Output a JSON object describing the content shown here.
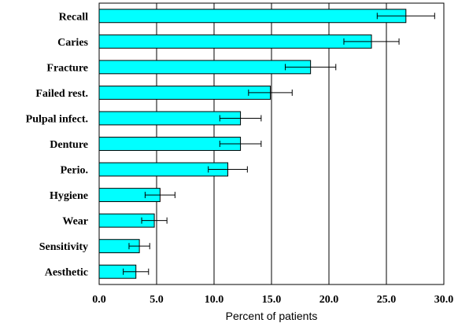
{
  "chart_data": {
    "type": "bar",
    "orientation": "horizontal",
    "categories": [
      "Recall",
      "Caries",
      "Fracture",
      "Failed rest.",
      "Pulpal infect.",
      "Denture",
      "Perio.",
      "Hygiene",
      "Wear",
      "Sensitivity",
      "Aesthetic"
    ],
    "values": [
      26.7,
      23.7,
      18.4,
      14.9,
      12.3,
      12.3,
      11.2,
      5.3,
      4.8,
      3.5,
      3.2
    ],
    "errors": [
      2.5,
      2.4,
      2.2,
      1.9,
      1.8,
      1.8,
      1.7,
      1.3,
      1.1,
      0.9,
      1.1
    ],
    "xlabel": "Percent of patients",
    "xlim": [
      0,
      30
    ],
    "xticks": [
      0,
      5,
      10,
      15,
      20,
      25,
      30
    ],
    "xtick_labels": [
      "0.0",
      "5.0",
      "10.0",
      "15.0",
      "20.0",
      "25.0",
      "30.0"
    ],
    "grid": "vertical",
    "bar_color": "#00ffff"
  }
}
